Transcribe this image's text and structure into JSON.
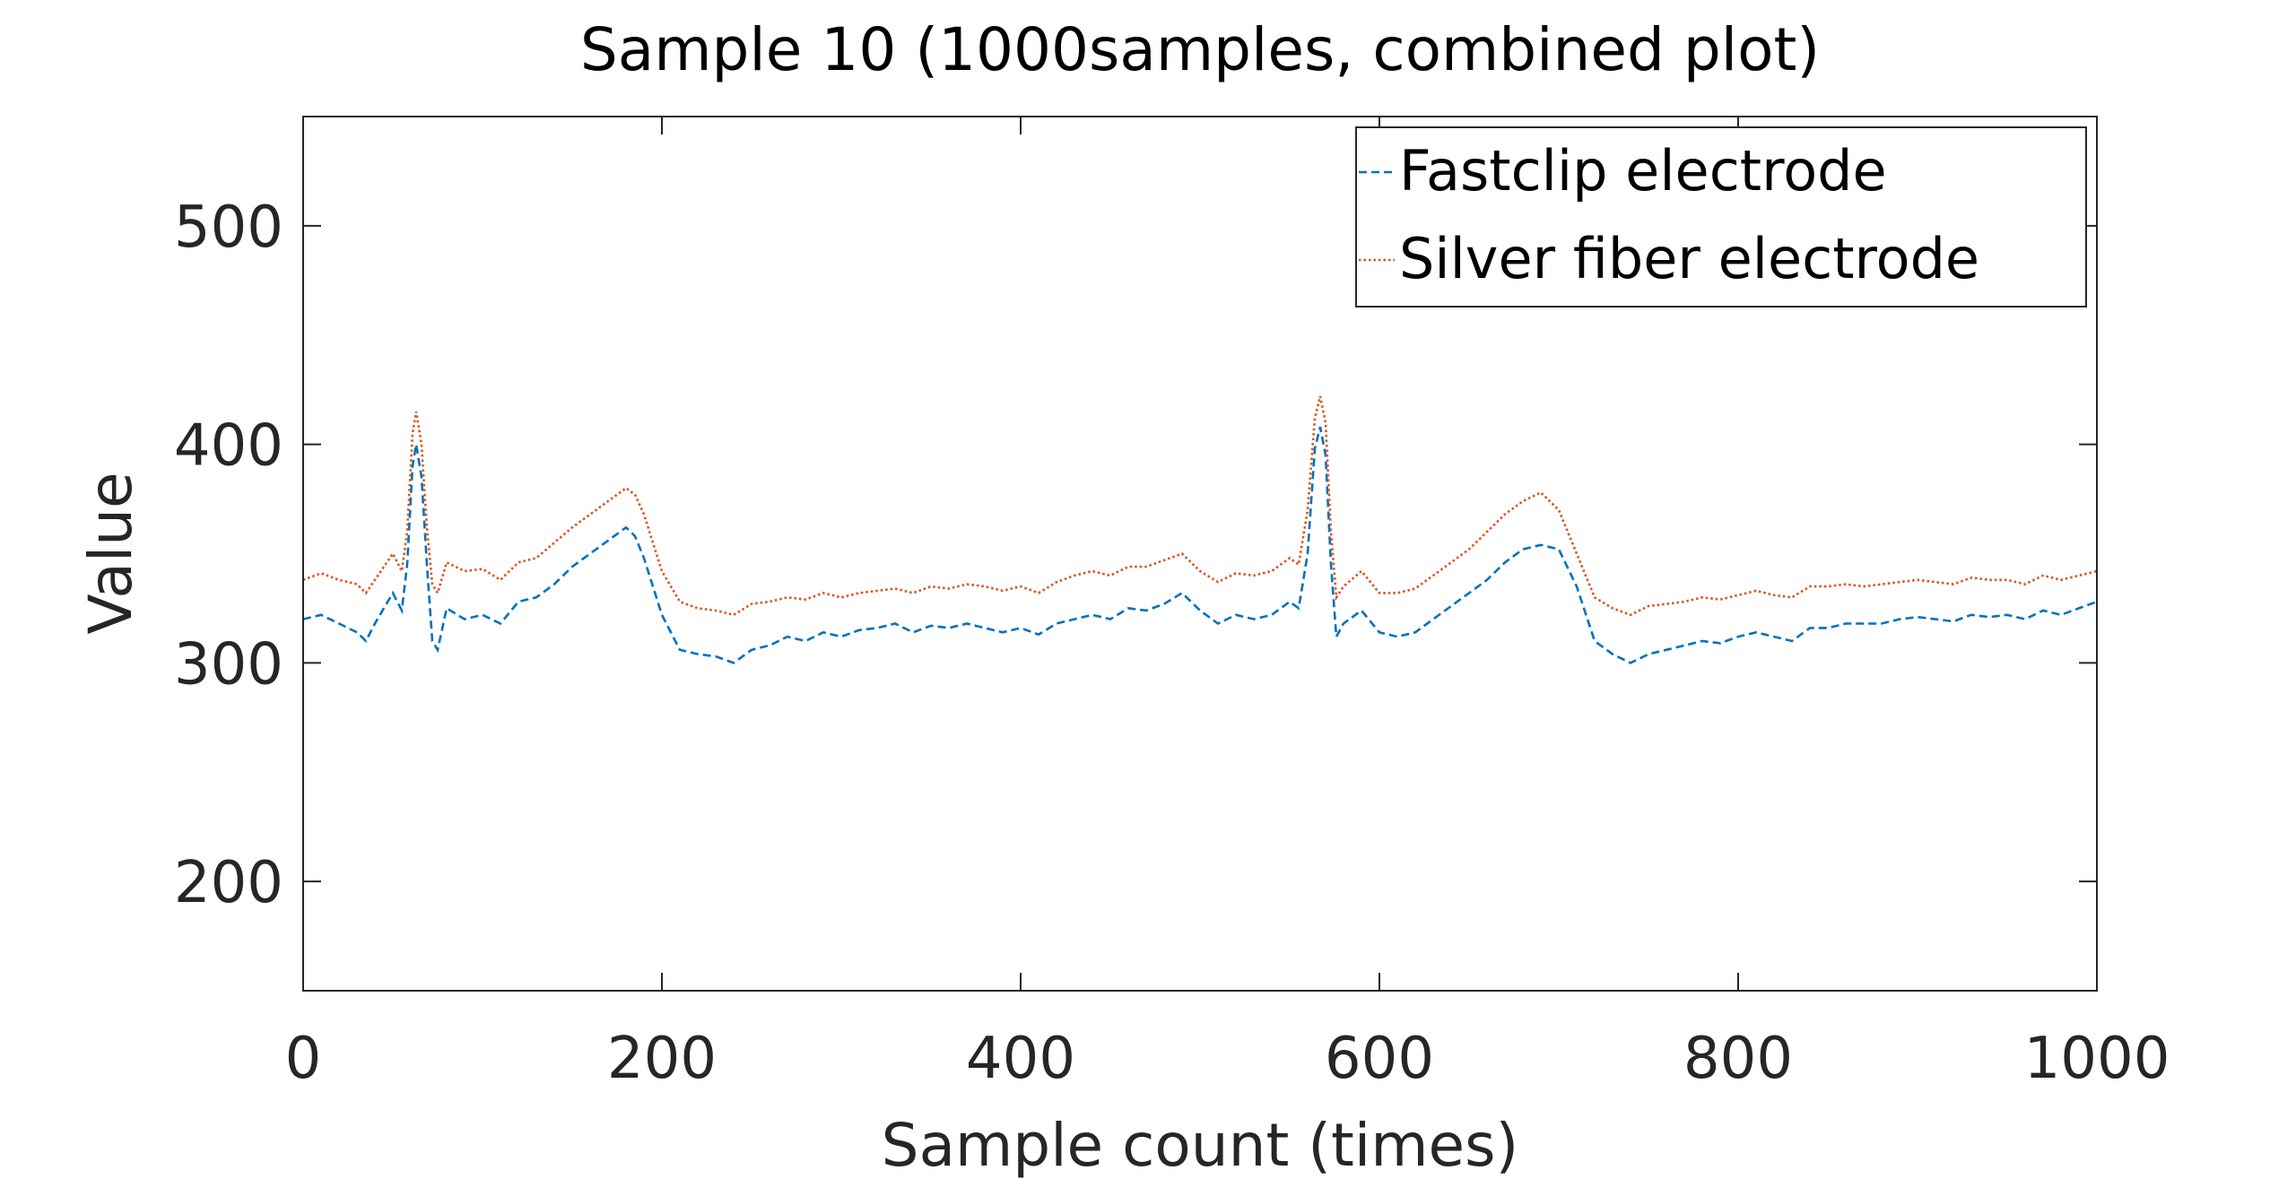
{
  "chart_data": {
    "type": "line",
    "title": "Sample 10 (1000samples, combined plot)",
    "xlabel": "Sample count (times)",
    "ylabel": "Value",
    "xlim": [
      0,
      1000
    ],
    "ylim": [
      150,
      550
    ],
    "xticks": [
      0,
      200,
      400,
      600,
      800,
      1000
    ],
    "yticks": [
      200,
      300,
      400,
      500
    ],
    "xtick_labels": [
      "0",
      "200",
      "400",
      "600",
      "800",
      "1000"
    ],
    "ytick_labels": [
      "200",
      "300",
      "400",
      "500"
    ],
    "grid": false,
    "legend_position": "top-right",
    "series": [
      {
        "name": "Fastclip electrode",
        "color": "#0072BD",
        "line_style": "dashed",
        "x": [
          0,
          10,
          20,
          30,
          35,
          40,
          50,
          55,
          58,
          61,
          63,
          66,
          69,
          72,
          75,
          80,
          90,
          100,
          110,
          120,
          130,
          140,
          150,
          160,
          170,
          180,
          185,
          190,
          200,
          210,
          220,
          230,
          240,
          250,
          260,
          270,
          280,
          290,
          300,
          310,
          320,
          330,
          340,
          350,
          360,
          370,
          380,
          390,
          400,
          410,
          420,
          430,
          440,
          450,
          460,
          470,
          480,
          490,
          500,
          510,
          520,
          530,
          540,
          550,
          555,
          560,
          564,
          567,
          570,
          573,
          576,
          580,
          590,
          600,
          610,
          620,
          630,
          640,
          650,
          660,
          670,
          680,
          690,
          700,
          710,
          720,
          730,
          740,
          750,
          760,
          770,
          780,
          790,
          800,
          810,
          820,
          830,
          840,
          850,
          860,
          870,
          880,
          890,
          900,
          910,
          920,
          930,
          940,
          950,
          960,
          970,
          980,
          990,
          1000
        ],
        "values": [
          320,
          322,
          318,
          314,
          310,
          318,
          332,
          324,
          345,
          390,
          400,
          385,
          345,
          310,
          306,
          325,
          320,
          322,
          318,
          328,
          330,
          336,
          344,
          350,
          356,
          362,
          358,
          348,
          322,
          306,
          304,
          303,
          300,
          306,
          308,
          312,
          310,
          314,
          312,
          315,
          316,
          318,
          314,
          317,
          316,
          318,
          316,
          314,
          316,
          313,
          318,
          320,
          322,
          320,
          325,
          324,
          327,
          332,
          324,
          318,
          322,
          320,
          322,
          328,
          325,
          350,
          398,
          408,
          395,
          345,
          312,
          318,
          324,
          314,
          312,
          314,
          320,
          326,
          332,
          338,
          346,
          352,
          354,
          352,
          335,
          310,
          304,
          300,
          304,
          306,
          308,
          310,
          309,
          312,
          314,
          312,
          310,
          316,
          316,
          318,
          318,
          318,
          320,
          321,
          320,
          319,
          322,
          321,
          322,
          320,
          324,
          322,
          325,
          328
        ]
      },
      {
        "name": "Silver fiber electrode",
        "color": "#D95319",
        "line_style": "dotted",
        "x": [
          0,
          10,
          20,
          30,
          35,
          40,
          50,
          55,
          58,
          61,
          63,
          66,
          69,
          72,
          75,
          80,
          90,
          100,
          110,
          120,
          130,
          140,
          150,
          160,
          170,
          180,
          185,
          190,
          200,
          210,
          220,
          230,
          240,
          250,
          260,
          270,
          280,
          290,
          300,
          310,
          320,
          330,
          340,
          350,
          360,
          370,
          380,
          390,
          400,
          410,
          420,
          430,
          440,
          450,
          460,
          470,
          480,
          490,
          500,
          510,
          520,
          530,
          540,
          550,
          555,
          560,
          564,
          567,
          570,
          573,
          576,
          580,
          590,
          600,
          610,
          620,
          630,
          640,
          650,
          660,
          670,
          680,
          690,
          700,
          710,
          720,
          730,
          740,
          750,
          760,
          770,
          780,
          790,
          800,
          810,
          820,
          830,
          840,
          850,
          860,
          870,
          880,
          890,
          900,
          910,
          920,
          930,
          940,
          950,
          960,
          970,
          980,
          990,
          1000
        ],
        "values": [
          338,
          341,
          338,
          336,
          332,
          338,
          350,
          342,
          360,
          405,
          415,
          400,
          362,
          336,
          332,
          346,
          342,
          343,
          338,
          346,
          348,
          355,
          362,
          368,
          374,
          380,
          377,
          368,
          342,
          328,
          325,
          324,
          322,
          327,
          328,
          330,
          329,
          332,
          330,
          332,
          333,
          334,
          332,
          335,
          334,
          336,
          335,
          333,
          335,
          332,
          337,
          340,
          342,
          340,
          344,
          344,
          347,
          350,
          342,
          337,
          341,
          340,
          342,
          348,
          345,
          370,
          412,
          422,
          410,
          360,
          330,
          335,
          342,
          332,
          332,
          334,
          340,
          346,
          352,
          360,
          368,
          374,
          378,
          370,
          350,
          330,
          325,
          322,
          326,
          327,
          328,
          330,
          329,
          331,
          333,
          331,
          330,
          335,
          335,
          336,
          335,
          336,
          337,
          338,
          337,
          336,
          339,
          338,
          338,
          336,
          340,
          338,
          340,
          342
        ]
      }
    ]
  }
}
